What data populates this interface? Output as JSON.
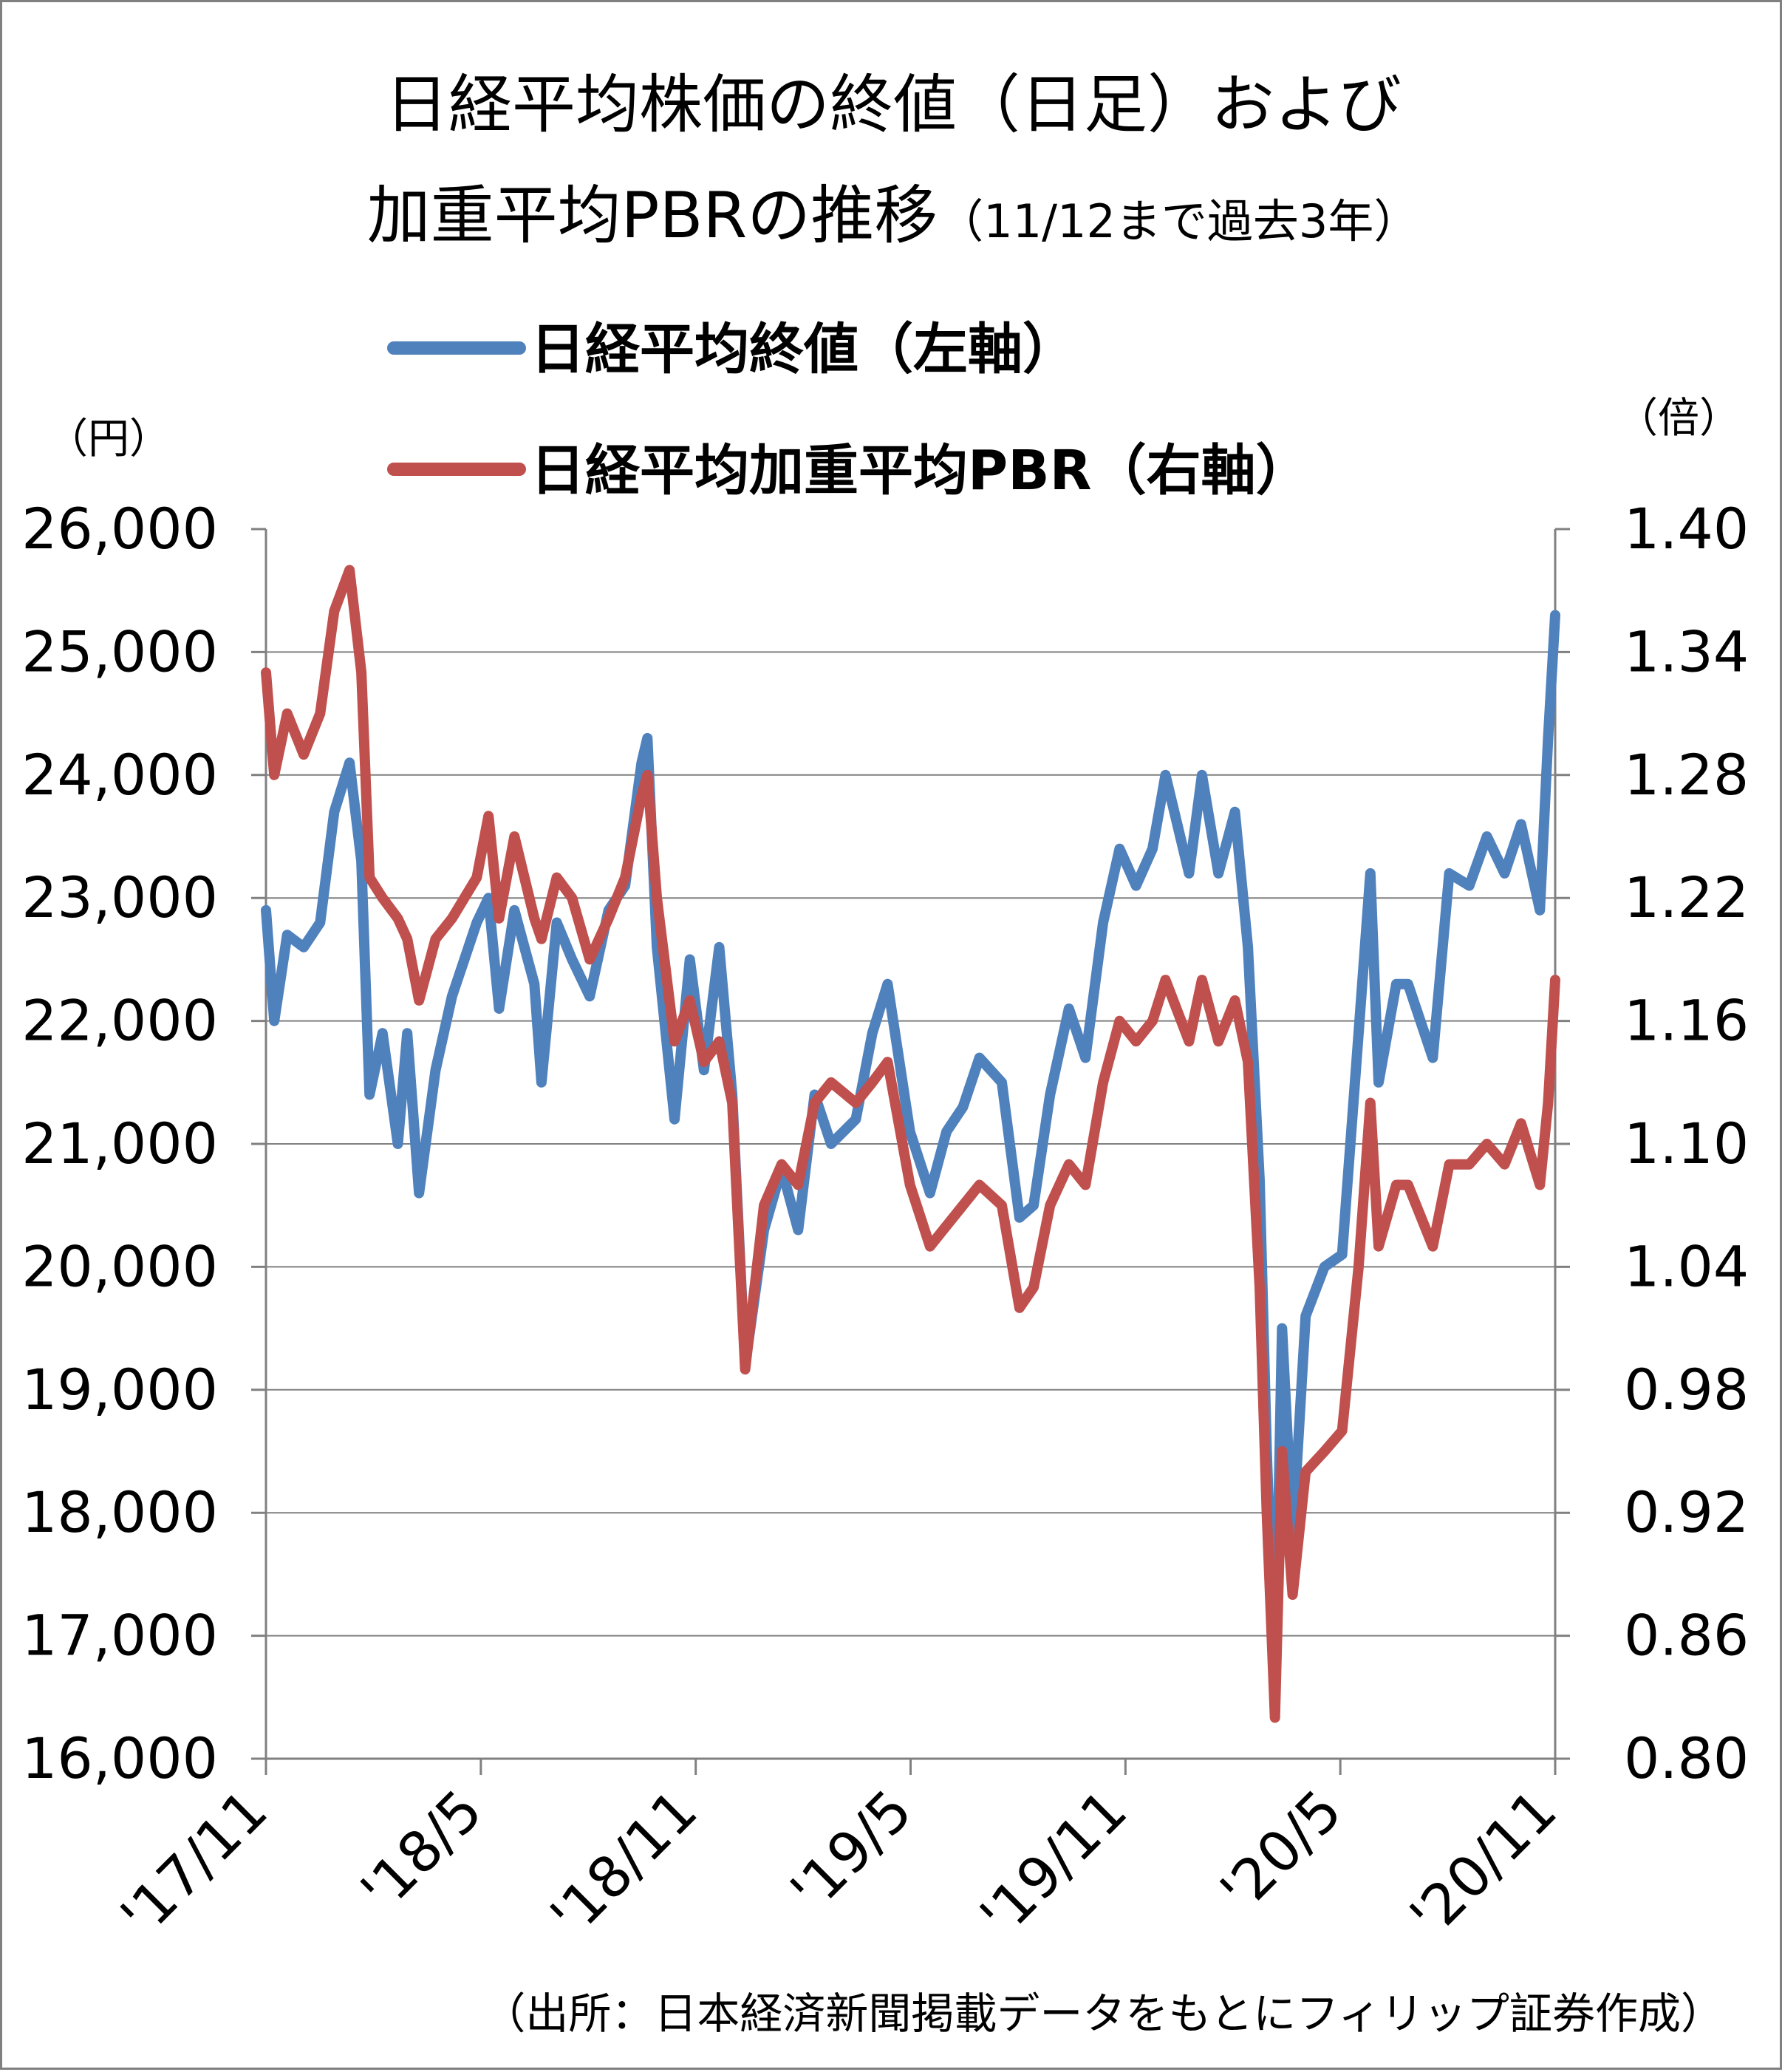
{
  "title": {
    "line1": "日経平均株価の終値（日足）および",
    "line2_main": "加重平均PBRの推移",
    "line2_note": "（11/12まで過去3年）"
  },
  "legend": [
    {
      "label": "日経平均終値（左軸）",
      "color": "#4F81BD"
    },
    {
      "label": "日経平均加重平均PBR（右軸）",
      "color": "#C0504D"
    }
  ],
  "source": "（出所：日本経済新聞掲載データをもとにフィリップ証券作成）",
  "chart_data": {
    "type": "line",
    "y_left": {
      "unit": "（円）",
      "min": 16000,
      "max": 26000,
      "ticks": [
        "26,000",
        "25,000",
        "24,000",
        "23,000",
        "22,000",
        "21,000",
        "20,000",
        "19,000",
        "18,000",
        "17,000",
        "16,000"
      ]
    },
    "y_right": {
      "unit": "（倍）",
      "min": 0.8,
      "max": 1.4,
      "ticks": [
        "1.40",
        "1.34",
        "1.28",
        "1.22",
        "1.16",
        "1.10",
        "1.04",
        "0.98",
        "0.92",
        "0.86",
        "0.80"
      ]
    },
    "x_ticks": [
      "'17/11",
      "'18/5",
      "'18/11",
      "'19/5",
      "'19/11",
      "'20/5",
      "'20/11"
    ],
    "grid": true,
    "series": [
      {
        "name": "日経平均終値（左軸）",
        "color": "#4F81BD",
        "axis": "left",
        "points": [
          [
            "2017-11-13",
            22900
          ],
          [
            "2017-11-20",
            22000
          ],
          [
            "2017-12-01",
            22700
          ],
          [
            "2017-12-15",
            22600
          ],
          [
            "2017-12-29",
            22800
          ],
          [
            "2018-01-10",
            23700
          ],
          [
            "2018-01-23",
            24100
          ],
          [
            "2018-02-02",
            23300
          ],
          [
            "2018-02-09",
            21400
          ],
          [
            "2018-02-20",
            21900
          ],
          [
            "2018-03-05",
            21000
          ],
          [
            "2018-03-13",
            21900
          ],
          [
            "2018-03-23",
            20600
          ],
          [
            "2018-04-06",
            21600
          ],
          [
            "2018-04-20",
            22200
          ],
          [
            "2018-05-11",
            22800
          ],
          [
            "2018-05-21",
            23000
          ],
          [
            "2018-05-30",
            22100
          ],
          [
            "2018-06-12",
            22900
          ],
          [
            "2018-06-29",
            22300
          ],
          [
            "2018-07-05",
            21500
          ],
          [
            "2018-07-18",
            22800
          ],
          [
            "2018-07-31",
            22500
          ],
          [
            "2018-08-15",
            22200
          ],
          [
            "2018-08-31",
            22900
          ],
          [
            "2018-09-14",
            23100
          ],
          [
            "2018-09-28",
            24100
          ],
          [
            "2018-10-03",
            24300
          ],
          [
            "2018-10-11",
            22600
          ],
          [
            "2018-10-26",
            21200
          ],
          [
            "2018-11-08",
            22500
          ],
          [
            "2018-11-20",
            21600
          ],
          [
            "2018-12-03",
            22600
          ],
          [
            "2018-12-14",
            21400
          ],
          [
            "2018-12-25",
            19200
          ],
          [
            "2019-01-10",
            20300
          ],
          [
            "2019-01-25",
            20800
          ],
          [
            "2019-02-08",
            20300
          ],
          [
            "2019-02-22",
            21400
          ],
          [
            "2019-03-08",
            21000
          ],
          [
            "2019-03-29",
            21200
          ],
          [
            "2019-04-12",
            21900
          ],
          [
            "2019-04-25",
            22300
          ],
          [
            "2019-05-14",
            21100
          ],
          [
            "2019-05-31",
            20600
          ],
          [
            "2019-06-14",
            21100
          ],
          [
            "2019-06-28",
            21300
          ],
          [
            "2019-07-12",
            21700
          ],
          [
            "2019-07-31",
            21500
          ],
          [
            "2019-08-15",
            20400
          ],
          [
            "2019-08-27",
            20500
          ],
          [
            "2019-09-10",
            21400
          ],
          [
            "2019-09-26",
            22100
          ],
          [
            "2019-10-10",
            21700
          ],
          [
            "2019-10-25",
            22800
          ],
          [
            "2019-11-08",
            23400
          ],
          [
            "2019-11-22",
            23100
          ],
          [
            "2019-12-06",
            23400
          ],
          [
            "2019-12-17",
            24000
          ],
          [
            "2020-01-06",
            23200
          ],
          [
            "2020-01-17",
            24000
          ],
          [
            "2020-01-31",
            23200
          ],
          [
            "2020-02-14",
            23700
          ],
          [
            "2020-02-25",
            22600
          ],
          [
            "2020-03-06",
            20700
          ],
          [
            "2020-03-12",
            18500
          ],
          [
            "2020-03-19",
            16600
          ],
          [
            "2020-03-25",
            19500
          ],
          [
            "2020-04-03",
            17800
          ],
          [
            "2020-04-14",
            19600
          ],
          [
            "2020-04-30",
            20000
          ],
          [
            "2020-05-15",
            20100
          ],
          [
            "2020-05-29",
            21900
          ],
          [
            "2020-06-08",
            23200
          ],
          [
            "2020-06-15",
            21500
          ],
          [
            "2020-06-30",
            22300
          ],
          [
            "2020-07-10",
            22300
          ],
          [
            "2020-07-31",
            21700
          ],
          [
            "2020-08-14",
            23200
          ],
          [
            "2020-08-31",
            23100
          ],
          [
            "2020-09-15",
            23500
          ],
          [
            "2020-09-30",
            23200
          ],
          [
            "2020-10-14",
            23600
          ],
          [
            "2020-10-30",
            22900
          ],
          [
            "2020-11-06",
            24300
          ],
          [
            "2020-11-12",
            25300
          ]
        ]
      },
      {
        "name": "日経平均加重平均PBR（右軸）",
        "color": "#C0504D",
        "axis": "right",
        "points": [
          [
            "2017-11-13",
            1.33
          ],
          [
            "2017-11-20",
            1.28
          ],
          [
            "2017-12-01",
            1.31
          ],
          [
            "2017-12-15",
            1.29
          ],
          [
            "2017-12-29",
            1.31
          ],
          [
            "2018-01-10",
            1.36
          ],
          [
            "2018-01-23",
            1.38
          ],
          [
            "2018-02-02",
            1.33
          ],
          [
            "2018-02-09",
            1.23
          ],
          [
            "2018-02-20",
            1.22
          ],
          [
            "2018-03-05",
            1.21
          ],
          [
            "2018-03-13",
            1.2
          ],
          [
            "2018-03-23",
            1.17
          ],
          [
            "2018-04-06",
            1.2
          ],
          [
            "2018-04-20",
            1.21
          ],
          [
            "2018-05-11",
            1.23
          ],
          [
            "2018-05-21",
            1.26
          ],
          [
            "2018-05-30",
            1.21
          ],
          [
            "2018-06-12",
            1.25
          ],
          [
            "2018-06-29",
            1.21
          ],
          [
            "2018-07-05",
            1.2
          ],
          [
            "2018-07-18",
            1.23
          ],
          [
            "2018-07-31",
            1.22
          ],
          [
            "2018-08-15",
            1.19
          ],
          [
            "2018-08-31",
            1.21
          ],
          [
            "2018-09-14",
            1.23
          ],
          [
            "2018-09-28",
            1.27
          ],
          [
            "2018-10-03",
            1.28
          ],
          [
            "2018-10-11",
            1.22
          ],
          [
            "2018-10-26",
            1.15
          ],
          [
            "2018-11-08",
            1.17
          ],
          [
            "2018-11-20",
            1.14
          ],
          [
            "2018-12-03",
            1.15
          ],
          [
            "2018-12-14",
            1.12
          ],
          [
            "2018-12-25",
            0.99
          ],
          [
            "2019-01-10",
            1.07
          ],
          [
            "2019-01-25",
            1.09
          ],
          [
            "2019-02-08",
            1.08
          ],
          [
            "2019-02-22",
            1.12
          ],
          [
            "2019-03-08",
            1.13
          ],
          [
            "2019-03-29",
            1.12
          ],
          [
            "2019-04-12",
            1.13
          ],
          [
            "2019-04-25",
            1.14
          ],
          [
            "2019-05-14",
            1.08
          ],
          [
            "2019-05-31",
            1.05
          ],
          [
            "2019-06-14",
            1.06
          ],
          [
            "2019-06-28",
            1.07
          ],
          [
            "2019-07-12",
            1.08
          ],
          [
            "2019-07-31",
            1.07
          ],
          [
            "2019-08-15",
            1.02
          ],
          [
            "2019-08-27",
            1.03
          ],
          [
            "2019-09-10",
            1.07
          ],
          [
            "2019-09-26",
            1.09
          ],
          [
            "2019-10-10",
            1.08
          ],
          [
            "2019-10-25",
            1.13
          ],
          [
            "2019-11-08",
            1.16
          ],
          [
            "2019-11-22",
            1.15
          ],
          [
            "2019-12-06",
            1.16
          ],
          [
            "2019-12-17",
            1.18
          ],
          [
            "2020-01-06",
            1.15
          ],
          [
            "2020-01-17",
            1.18
          ],
          [
            "2020-01-31",
            1.15
          ],
          [
            "2020-02-14",
            1.17
          ],
          [
            "2020-02-25",
            1.14
          ],
          [
            "2020-03-06",
            1.03
          ],
          [
            "2020-03-12",
            0.92
          ],
          [
            "2020-03-19",
            0.82
          ],
          [
            "2020-03-25",
            0.95
          ],
          [
            "2020-04-03",
            0.88
          ],
          [
            "2020-04-14",
            0.94
          ],
          [
            "2020-04-30",
            0.95
          ],
          [
            "2020-05-15",
            0.96
          ],
          [
            "2020-05-29",
            1.04
          ],
          [
            "2020-06-08",
            1.12
          ],
          [
            "2020-06-15",
            1.05
          ],
          [
            "2020-06-30",
            1.08
          ],
          [
            "2020-07-10",
            1.08
          ],
          [
            "2020-07-31",
            1.05
          ],
          [
            "2020-08-14",
            1.09
          ],
          [
            "2020-08-31",
            1.09
          ],
          [
            "2020-09-15",
            1.1
          ],
          [
            "2020-09-30",
            1.09
          ],
          [
            "2020-10-14",
            1.11
          ],
          [
            "2020-10-30",
            1.08
          ],
          [
            "2020-11-06",
            1.12
          ],
          [
            "2020-11-12",
            1.18
          ]
        ]
      }
    ]
  }
}
